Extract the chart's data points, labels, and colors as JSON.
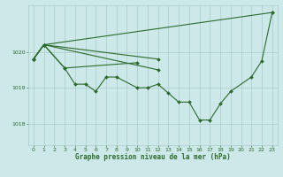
{
  "title": "Graphe pression niveau de la mer (hPa)",
  "bg_color": "#cce8e8",
  "grid_color": "#aacccc",
  "line_color": "#2d6a2d",
  "xlim": [
    -0.5,
    23.5
  ],
  "ylim": [
    1017.4,
    1021.3
  ],
  "yticks": [
    1018,
    1019,
    1020
  ],
  "xticks": [
    0,
    1,
    2,
    3,
    4,
    5,
    6,
    7,
    8,
    9,
    10,
    11,
    12,
    13,
    14,
    15,
    16,
    17,
    18,
    19,
    20,
    21,
    22,
    23
  ],
  "main_x": [
    0,
    1,
    3,
    4,
    5,
    6,
    7,
    8,
    10,
    11,
    12,
    13,
    14,
    15,
    16,
    17,
    18,
    19,
    21,
    22,
    23
  ],
  "main_y": [
    1019.8,
    1020.2,
    1019.55,
    1019.1,
    1019.1,
    1018.9,
    1019.3,
    1019.3,
    1019.0,
    1019.0,
    1019.1,
    1018.85,
    1018.6,
    1018.6,
    1018.1,
    1018.1,
    1018.55,
    1018.9,
    1019.3,
    1019.75,
    1021.1
  ],
  "line1_x": [
    0,
    1,
    23
  ],
  "line1_y": [
    1019.8,
    1020.2,
    1021.1
  ],
  "line2_x": [
    0,
    1,
    12
  ],
  "line2_y": [
    1019.8,
    1020.2,
    1019.5
  ],
  "line3_x": [
    0,
    1,
    12
  ],
  "line3_y": [
    1019.8,
    1020.2,
    1019.8
  ],
  "line4_x": [
    0,
    1,
    3,
    10
  ],
  "line4_y": [
    1019.8,
    1020.2,
    1019.55,
    1019.7
  ]
}
